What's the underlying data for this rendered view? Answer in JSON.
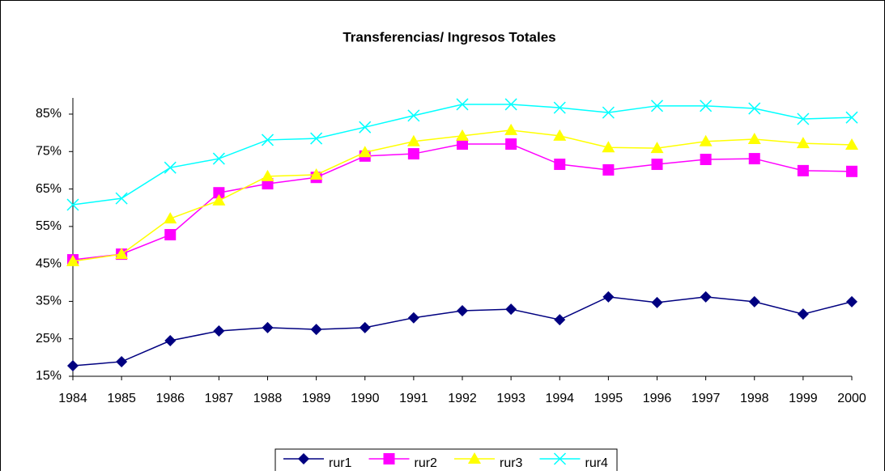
{
  "chart_data": {
    "type": "line",
    "title": "Transferencias/ Ingresos Totales",
    "categories": [
      "1984",
      "1985",
      "1986",
      "1987",
      "1988",
      "1989",
      "1990",
      "1991",
      "1992",
      "1993",
      "1994",
      "1995",
      "1996",
      "1997",
      "1998",
      "1999",
      "2000"
    ],
    "series": [
      {
        "name": "rur1",
        "color": "#000080",
        "marker": "diamond",
        "values": [
          17.8,
          18.9,
          24.5,
          27.1,
          28,
          27.5,
          28,
          30.6,
          32.5,
          32.9,
          30.1,
          36.2,
          34.7,
          36.2,
          34.9,
          31.6,
          34.9
        ]
      },
      {
        "name": "rur2",
        "color": "#ff00ff",
        "marker": "square",
        "values": [
          46.1,
          47.6,
          52.8,
          64,
          66.4,
          68.1,
          73.8,
          74.4,
          77,
          77,
          71.6,
          70.1,
          71.6,
          72.9,
          73.1,
          69.9,
          69.7
        ]
      },
      {
        "name": "rur3",
        "color": "#ffff00",
        "marker": "triangle",
        "values": [
          45.7,
          47.6,
          57.1,
          61.9,
          68.4,
          68.8,
          74.8,
          77.7,
          79.2,
          80.7,
          79.2,
          76.1,
          75.9,
          77.7,
          78.3,
          77.2,
          76.8
        ]
      },
      {
        "name": "rur4",
        "color": "#00ffff",
        "marker": "x",
        "values": [
          60.8,
          62.5,
          70.7,
          73.1,
          78.1,
          78.5,
          81.5,
          84.6,
          87.6,
          87.6,
          86.7,
          85.4,
          87.2,
          87.2,
          86.5,
          83.7,
          84.1
        ]
      }
    ],
    "ylim": [
      15,
      85
    ],
    "yticks": [
      {
        "value": 15,
        "label": "15%"
      },
      {
        "value": 25,
        "label": "25%"
      },
      {
        "value": 35,
        "label": "35%"
      },
      {
        "value": 45,
        "label": "45%"
      },
      {
        "value": 55,
        "label": "55%"
      },
      {
        "value": 65,
        "label": "65%"
      },
      {
        "value": 75,
        "label": "75%"
      },
      {
        "value": 85,
        "label": "85%"
      }
    ],
    "legend": "bottom"
  }
}
